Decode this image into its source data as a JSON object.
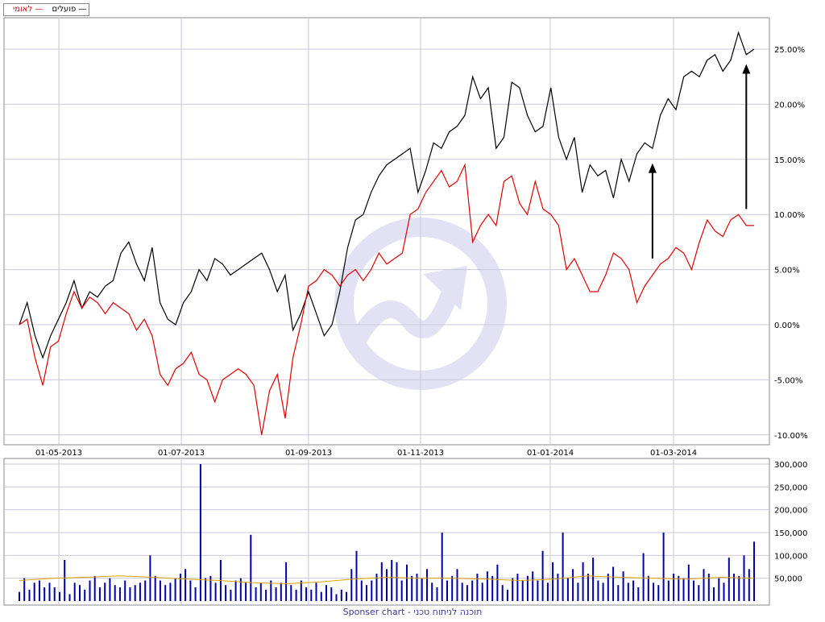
{
  "legend": {
    "series_a_label": "פועלים",
    "series_b_label": "לאומי"
  },
  "footer_text": "Sponser chart - תוכנה לניתוח טכני",
  "colors": {
    "series_a": "#000000",
    "series_b": "#e00000",
    "volume": "#0000aa",
    "volume_ma": "#e0a000",
    "grid": "#c8c8d8",
    "watermark": "#e2e2f4",
    "arrow": "#000000"
  },
  "chart_data": [
    {
      "type": "line",
      "x_ticks": [
        "01-05-2013",
        "01-07-2013",
        "01-09-2013",
        "01-11-2013",
        "01-01-2014",
        "01-03-2014"
      ],
      "y_ticks": [
        "-10.00%",
        "-5.00%",
        "0.00%",
        "5.00%",
        "10.00%",
        "15.00%",
        "20.00%",
        "25.00%"
      ],
      "ylim": [
        -10.5,
        28.5
      ],
      "y_scale": "linear",
      "grid": true,
      "legend_position": "top-left",
      "series": [
        {
          "name": "פועלים",
          "values": [
            0.0,
            2.0,
            -1.0,
            -3.0,
            -1.0,
            0.5,
            2.0,
            4.0,
            1.5,
            3.0,
            2.5,
            3.5,
            4.0,
            6.5,
            7.5,
            5.5,
            4.0,
            7.0,
            2.0,
            0.5,
            0.0,
            2.0,
            3.0,
            5.0,
            4.0,
            6.0,
            5.5,
            4.5,
            5.0,
            5.5,
            6.0,
            6.5,
            5.0,
            3.0,
            4.5,
            -0.5,
            1.0,
            3.0,
            1.0,
            -1.0,
            0.0,
            3.0,
            7.0,
            9.5,
            10.0,
            12.0,
            13.5,
            14.5,
            15.0,
            15.5,
            16.0,
            12.0,
            14.0,
            16.5,
            16.0,
            17.5,
            18.0,
            19.0,
            22.5,
            20.5,
            21.5,
            16.0,
            17.0,
            22.0,
            21.5,
            19.0,
            17.5,
            18.0,
            21.5,
            17.0,
            15.0,
            17.0,
            12.0,
            14.5,
            13.5,
            14.0,
            11.5,
            15.0,
            13.0,
            15.5,
            16.5,
            16.0,
            19.0,
            20.5,
            19.5,
            22.5,
            23.0,
            22.5,
            24.0,
            24.5,
            23.0,
            24.0,
            26.5,
            24.5,
            25.0
          ],
          "values_original_pixel_note": ""
        },
        {
          "name": "לאומי",
          "values": [
            0.0,
            0.5,
            -3.0,
            -5.5,
            -2.0,
            -1.5,
            1.0,
            3.0,
            1.5,
            2.5,
            2.0,
            1.0,
            2.0,
            1.5,
            1.0,
            -0.5,
            0.5,
            -1.0,
            -4.5,
            -5.5,
            -4.0,
            -3.5,
            -2.5,
            -4.5,
            -5.0,
            -7.0,
            -5.0,
            -4.5,
            -4.0,
            -4.5,
            -5.5,
            -10.0,
            -6.0,
            -4.5,
            -8.5,
            -3.0,
            0.0,
            3.5,
            4.0,
            5.0,
            4.5,
            3.5,
            4.5,
            5.0,
            4.0,
            5.0,
            6.5,
            5.5,
            6.0,
            6.5,
            10.0,
            10.5,
            12.0,
            13.0,
            14.0,
            12.5,
            13.0,
            14.5,
            7.5,
            9.0,
            10.0,
            9.0,
            13.0,
            13.5,
            11.0,
            10.0,
            13.0,
            10.5,
            10.0,
            9.0,
            5.0,
            6.0,
            4.5,
            3.0,
            3.0,
            4.5,
            6.5,
            6.0,
            5.0,
            2.0,
            3.5,
            4.5,
            5.5,
            6.0,
            7.0,
            6.5,
            5.0,
            7.5,
            9.5,
            8.5,
            8.0,
            9.5,
            10.0,
            9.0,
            9.0
          ],
          "values_original_pixel_note": ""
        }
      ],
      "annotations": [
        {
          "type": "arrow",
          "direction": "up",
          "from_index": 81,
          "from_value": 6.0,
          "to_value": 14.5
        },
        {
          "type": "arrow",
          "direction": "up",
          "from_index": 93,
          "from_value": 10.5,
          "to_value": 23.5
        }
      ]
    },
    {
      "type": "bar",
      "name": "volume",
      "y_ticks": [
        "50,000",
        "100,000",
        "150,000",
        "200,000",
        "250,000",
        "300,000"
      ],
      "ylim": [
        0,
        300000
      ],
      "grid": true,
      "values": [
        20000,
        50000,
        25000,
        40000,
        45000,
        30000,
        40000,
        30000,
        20000,
        90000,
        15000,
        40000,
        35000,
        25000,
        45000,
        55000,
        30000,
        40000,
        50000,
        35000,
        30000,
        45000,
        30000,
        35000,
        40000,
        45000,
        100000,
        55000,
        45000,
        35000,
        40000,
        50000,
        60000,
        70000,
        45000,
        30000,
        300000,
        50000,
        55000,
        40000,
        90000,
        35000,
        25000,
        45000,
        50000,
        40000,
        145000,
        30000,
        40000,
        25000,
        45000,
        30000,
        40000,
        85000,
        35000,
        25000,
        45000,
        30000,
        25000,
        40000,
        20000,
        35000,
        30000,
        15000,
        25000,
        20000,
        70000,
        110000,
        45000,
        35000,
        45000,
        60000,
        85000,
        70000,
        90000,
        85000,
        45000,
        80000,
        55000,
        60000,
        50000,
        70000,
        40000,
        30000,
        150000,
        45000,
        55000,
        70000,
        40000,
        35000,
        45000,
        60000,
        40000,
        65000,
        55000,
        80000,
        35000,
        25000,
        50000,
        60000,
        45000,
        55000,
        65000,
        45000,
        110000,
        40000,
        85000,
        60000,
        150000,
        50000,
        70000,
        40000,
        85000,
        60000,
        95000,
        45000,
        40000,
        60000,
        75000,
        35000,
        65000,
        40000,
        45000,
        30000,
        105000,
        55000,
        40000,
        35000,
        150000,
        45000,
        60000,
        55000,
        50000,
        80000,
        45000,
        35000,
        70000,
        60000,
        30000,
        50000,
        40000,
        95000,
        60000,
        55000,
        100000,
        70000,
        130000
      ],
      "ma_values": [
        45000,
        50000,
        52000,
        55000,
        52000,
        48000,
        45000,
        40000,
        38000,
        42000,
        48000,
        52000,
        50000,
        50000,
        48000,
        45000,
        48000,
        55000,
        52000,
        50000,
        48000,
        52000,
        50000
      ]
    }
  ]
}
